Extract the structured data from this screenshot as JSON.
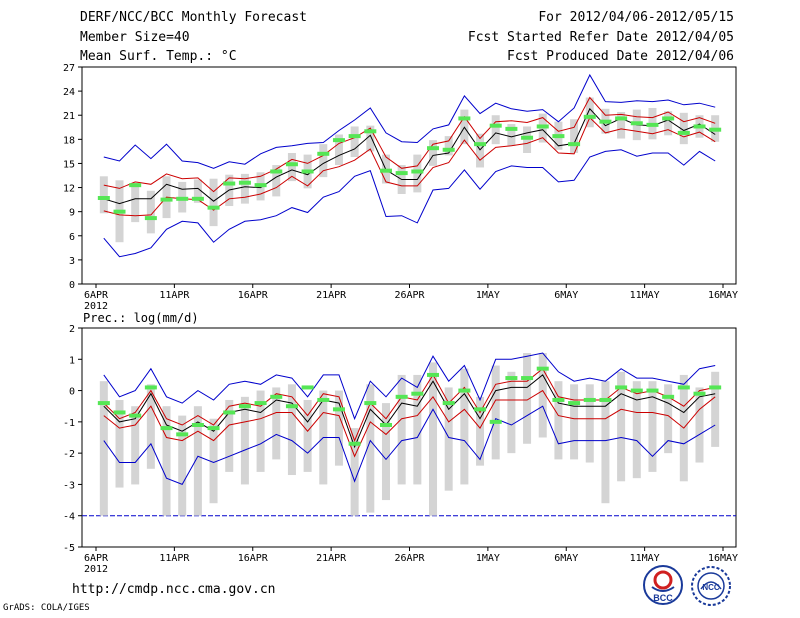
{
  "header": {
    "title": "DERF/NCC/BCC Monthly Forecast",
    "member_size": "Member Size=40",
    "variable": "Mean Surf. Temp.: °C",
    "period": "For 2012/04/06-2012/05/15",
    "started": "Fcst Started Refer Date 2012/04/05",
    "produced": "Fcst Produced Date 2012/04/06"
  },
  "footer": {
    "url": "http://cmdp.ncc.cma.gov.cn",
    "grads": "GrADS: COLA/IGES",
    "logo_left_text": "BCC",
    "logo_right_text": "NCC"
  },
  "colors": {
    "max_min": "#0000cc",
    "ensemble_bounds": "#cc0000",
    "ensemble_mean": "#000000",
    "box": "#d4d4d4",
    "median": "#55e655"
  },
  "chart_data": [
    {
      "type": "line",
      "title": "Mean Surf. Temp.: °C",
      "xlabel": "",
      "ylabel": "°C",
      "ylim": [
        0,
        27
      ],
      "yticks": [
        "0",
        "3",
        "6",
        "9",
        "12",
        "15",
        "18",
        "21",
        "24",
        "27"
      ],
      "x_days": 40,
      "xticks": [
        {
          "label": "6APR",
          "day": 0,
          "sub": "2012"
        },
        {
          "label": "11APR",
          "day": 5
        },
        {
          "label": "16APR",
          "day": 10
        },
        {
          "label": "21APR",
          "day": 15
        },
        {
          "label": "26APR",
          "day": 20
        },
        {
          "label": "1MAY",
          "day": 25
        },
        {
          "label": "6MAY",
          "day": 30
        },
        {
          "label": "11MAY",
          "day": 35
        },
        {
          "label": "16MAY",
          "day": 40
        }
      ],
      "series": [
        {
          "name": "max",
          "role": "max",
          "values": [
            15.8,
            15.3,
            17.3,
            15.6,
            17.4,
            15.3,
            15.1,
            14.4,
            15.2,
            14.9,
            16.2,
            17.0,
            17.2,
            17.5,
            17.6,
            19.1,
            20.4,
            21.9,
            18.8,
            17.7,
            17.6,
            19.3,
            19.8,
            23.4,
            21.2,
            22.5,
            21.8,
            21.5,
            21.7,
            20.2,
            21.9,
            26.0,
            22.7,
            22.6,
            22.8,
            22.7,
            22.9,
            22.3,
            22.5,
            22.0
          ]
        },
        {
          "name": "upper",
          "role": "bound",
          "values": [
            12.3,
            11.9,
            12.7,
            12.4,
            13.7,
            13.1,
            13.2,
            11.5,
            13.2,
            13.1,
            13.4,
            14.3,
            15.5,
            15.0,
            16.0,
            17.5,
            18.2,
            19.4,
            15.8,
            14.4,
            14.7,
            17.4,
            17.8,
            20.8,
            18.1,
            20.2,
            20.3,
            20.1,
            20.7,
            19.0,
            19.5,
            23.2,
            21.0,
            21.1,
            20.8,
            20.7,
            21.4,
            20.2,
            20.7,
            20.0
          ]
        },
        {
          "name": "ensemble mean",
          "role": "mean",
          "values": [
            10.6,
            10.0,
            10.6,
            10.6,
            12.4,
            11.8,
            11.9,
            10.3,
            11.7,
            12.1,
            12.0,
            13.3,
            14.2,
            13.6,
            15.0,
            16.0,
            16.8,
            18.5,
            14.2,
            13.0,
            13.0,
            16.0,
            16.3,
            19.5,
            16.7,
            18.8,
            18.3,
            18.8,
            19.2,
            17.2,
            17.5,
            21.8,
            19.7,
            20.6,
            19.8,
            19.7,
            20.4,
            19.1,
            19.9,
            18.6
          ]
        },
        {
          "name": "lower",
          "role": "bound",
          "values": [
            9.1,
            8.6,
            8.5,
            8.6,
            10.8,
            10.6,
            10.5,
            9.2,
            10.6,
            10.8,
            11.2,
            12.0,
            13.4,
            12.2,
            14.1,
            14.6,
            15.4,
            16.8,
            12.7,
            12.2,
            12.2,
            14.5,
            15.1,
            17.9,
            15.4,
            17.0,
            17.2,
            17.5,
            18.2,
            16.3,
            16.2,
            20.7,
            18.8,
            19.3,
            19.0,
            18.7,
            19.2,
            18.3,
            18.9,
            17.7
          ]
        },
        {
          "name": "min",
          "role": "min",
          "values": [
            5.7,
            3.4,
            3.8,
            4.5,
            6.8,
            7.8,
            7.6,
            5.2,
            6.8,
            7.8,
            8.0,
            8.5,
            9.5,
            8.9,
            10.8,
            11.5,
            13.4,
            14.1,
            8.4,
            8.5,
            7.6,
            11.7,
            11.9,
            14.2,
            11.8,
            14.0,
            14.7,
            14.5,
            14.5,
            12.7,
            12.9,
            15.8,
            16.5,
            16.7,
            15.9,
            16.3,
            16.3,
            14.8,
            16.5,
            15.3
          ]
        }
      ],
      "boxes": [
        {
          "low": 8.8,
          "high": 13.4,
          "median": 10.7
        },
        {
          "low": 5.2,
          "high": 12.9,
          "median": 9.0
        },
        {
          "low": 7.7,
          "high": 12.6,
          "median": 12.3
        },
        {
          "low": 6.3,
          "high": 11.6,
          "median": 8.2
        },
        {
          "low": 8.2,
          "high": 13.4,
          "median": 10.5
        },
        {
          "low": 8.9,
          "high": 12.7,
          "median": 10.6
        },
        {
          "low": 10.1,
          "high": 13.0,
          "median": 10.6
        },
        {
          "low": 7.2,
          "high": 13.1,
          "median": 9.5
        },
        {
          "low": 9.7,
          "high": 13.6,
          "median": 12.5
        },
        {
          "low": 10.0,
          "high": 13.7,
          "median": 12.6
        },
        {
          "low": 10.4,
          "high": 13.9,
          "median": 12.3
        },
        {
          "low": 10.9,
          "high": 14.8,
          "median": 14.0
        },
        {
          "low": 12.8,
          "high": 16.3,
          "median": 14.9
        },
        {
          "low": 11.9,
          "high": 16.1,
          "median": 14.0
        },
        {
          "low": 13.3,
          "high": 17.4,
          "median": 16.2
        },
        {
          "low": 14.8,
          "high": 18.6,
          "median": 17.9
        },
        {
          "low": 15.8,
          "high": 19.6,
          "median": 18.4
        },
        {
          "low": 16.5,
          "high": 19.7,
          "median": 19.0
        },
        {
          "low": 12.5,
          "high": 16.1,
          "median": 14.1
        },
        {
          "low": 11.2,
          "high": 14.8,
          "median": 13.8
        },
        {
          "low": 11.4,
          "high": 16.1,
          "median": 14.0
        },
        {
          "low": 14.7,
          "high": 17.9,
          "median": 16.9
        },
        {
          "low": 16.0,
          "high": 18.4,
          "median": 16.7
        },
        {
          "low": 17.4,
          "high": 21.7,
          "median": 20.6
        },
        {
          "low": 14.5,
          "high": 18.7,
          "median": 17.4
        },
        {
          "low": 17.4,
          "high": 21.0,
          "median": 19.7
        },
        {
          "low": 17.2,
          "high": 19.9,
          "median": 19.3
        },
        {
          "low": 16.3,
          "high": 19.6,
          "median": 18.2
        },
        {
          "low": 17.6,
          "high": 21.2,
          "median": 19.6
        },
        {
          "low": 16.7,
          "high": 20.2,
          "median": 18.4
        },
        {
          "low": 16.3,
          "high": 20.5,
          "median": 17.4
        },
        {
          "low": 19.5,
          "high": 23.2,
          "median": 20.8
        },
        {
          "low": 18.7,
          "high": 21.8,
          "median": 20.2
        },
        {
          "low": 18.1,
          "high": 21.4,
          "median": 20.6
        },
        {
          "low": 17.9,
          "high": 21.7,
          "median": 20.0
        },
        {
          "low": 18.0,
          "high": 21.9,
          "median": 19.8
        },
        {
          "low": 18.5,
          "high": 21.5,
          "median": 20.6
        },
        {
          "low": 17.4,
          "high": 21.3,
          "median": 18.8
        },
        {
          "low": 18.2,
          "high": 21.0,
          "median": 19.6
        },
        {
          "low": 17.7,
          "high": 21.0,
          "median": 19.2
        }
      ]
    },
    {
      "type": "line",
      "title": "Prec.: log(mm/d)",
      "xlabel": "",
      "ylabel": "log(mm/d)",
      "ylim": [
        -5,
        2
      ],
      "yticks": [
        "-5",
        "-4",
        "-3",
        "-2",
        "-1",
        "0",
        "1",
        "2"
      ],
      "x_days": 40,
      "xticks": [
        {
          "label": "6APR",
          "day": 0,
          "sub": "2012"
        },
        {
          "label": "11APR",
          "day": 5
        },
        {
          "label": "16APR",
          "day": 10
        },
        {
          "label": "21APR",
          "day": 15
        },
        {
          "label": "26APR",
          "day": 20
        },
        {
          "label": "1MAY",
          "day": 25
        },
        {
          "label": "6MAY",
          "day": 30
        },
        {
          "label": "11MAY",
          "day": 35
        },
        {
          "label": "16MAY",
          "day": 40
        }
      ],
      "series": [
        {
          "name": "max",
          "role": "max",
          "values": [
            0.5,
            -0.2,
            0.0,
            0.7,
            -0.2,
            -0.4,
            0.0,
            -0.3,
            0.2,
            0.3,
            0.2,
            0.5,
            0.4,
            -0.2,
            0.5,
            0.5,
            -0.9,
            0.3,
            -0.2,
            0.4,
            0.1,
            1.1,
            0.3,
            0.8,
            -0.3,
            1.0,
            1.0,
            1.1,
            1.2,
            0.6,
            0.3,
            0.4,
            0.3,
            0.7,
            0.4,
            0.4,
            0.3,
            0.2,
            0.7,
            0.8
          ]
        },
        {
          "name": "upper",
          "role": "bound",
          "values": [
            -0.4,
            -0.9,
            -0.7,
            0.0,
            -0.9,
            -1.1,
            -0.8,
            -1.1,
            -0.5,
            -0.4,
            -0.5,
            -0.1,
            -0.2,
            -0.8,
            -0.1,
            -0.2,
            -1.6,
            -0.4,
            -0.9,
            -0.2,
            -0.3,
            0.5,
            -0.4,
            0.1,
            -0.7,
            0.2,
            0.3,
            0.3,
            0.7,
            -0.2,
            -0.3,
            -0.3,
            -0.3,
            0.1,
            -0.1,
            0.0,
            -0.2,
            -0.5,
            0.0,
            0.1
          ]
        },
        {
          "name": "ensemble mean",
          "role": "mean",
          "values": [
            -0.5,
            -1.0,
            -0.9,
            -0.1,
            -1.1,
            -1.3,
            -1.0,
            -1.3,
            -0.7,
            -0.6,
            -0.7,
            -0.3,
            -0.4,
            -1.0,
            -0.3,
            -0.4,
            -1.8,
            -0.6,
            -1.1,
            -0.4,
            -0.5,
            0.3,
            -0.6,
            -0.1,
            -0.9,
            0.0,
            0.1,
            0.1,
            0.5,
            -0.4,
            -0.5,
            -0.5,
            -0.5,
            -0.1,
            -0.3,
            -0.2,
            -0.4,
            -0.7,
            -0.2,
            -0.1
          ]
        },
        {
          "name": "lower",
          "role": "bound",
          "values": [
            -0.8,
            -1.2,
            -1.1,
            -0.5,
            -1.5,
            -1.6,
            -1.3,
            -1.6,
            -1.1,
            -1.0,
            -0.9,
            -0.7,
            -0.7,
            -1.3,
            -0.7,
            -0.8,
            -2.1,
            -1.0,
            -1.4,
            -0.9,
            -0.8,
            -0.2,
            -1.0,
            -0.6,
            -1.2,
            -0.3,
            -0.3,
            -0.3,
            0.0,
            -0.8,
            -0.9,
            -0.9,
            -0.9,
            -0.6,
            -0.7,
            -0.7,
            -0.8,
            -1.2,
            -0.6,
            -0.2
          ]
        },
        {
          "name": "min",
          "role": "min",
          "values": [
            -1.6,
            -2.3,
            -2.3,
            -1.7,
            -2.8,
            -3.0,
            -2.1,
            -2.3,
            -2.1,
            -1.9,
            -1.7,
            -1.4,
            -1.6,
            -2.0,
            -1.5,
            -1.5,
            -2.9,
            -1.6,
            -2.2,
            -1.6,
            -1.5,
            -0.6,
            -1.5,
            -1.6,
            -2.2,
            -0.9,
            -1.1,
            -0.8,
            -0.5,
            -1.7,
            -1.6,
            -1.6,
            -1.6,
            -1.5,
            -1.6,
            -2.1,
            -1.6,
            -1.7,
            -1.4,
            -1.1
          ]
        }
      ],
      "baseline": -4.0,
      "boxes": [
        {
          "low": -4.0,
          "high": 0.3,
          "median": -0.4
        },
        {
          "low": -3.1,
          "high": -0.3,
          "median": -0.7
        },
        {
          "low": -3.0,
          "high": -0.5,
          "median": -0.8
        },
        {
          "low": -2.5,
          "high": 0.2,
          "median": 0.1
        },
        {
          "low": -4.0,
          "high": -0.5,
          "median": -1.2
        },
        {
          "low": -4.0,
          "high": -0.8,
          "median": -1.4
        },
        {
          "low": -4.0,
          "high": -0.5,
          "median": -1.1
        },
        {
          "low": -3.6,
          "high": -0.9,
          "median": -1.2
        },
        {
          "low": -2.6,
          "high": -0.3,
          "median": -0.7
        },
        {
          "low": -3.0,
          "high": -0.2,
          "median": -0.5
        },
        {
          "low": -2.6,
          "high": 0.0,
          "median": -0.4
        },
        {
          "low": -2.2,
          "high": 0.1,
          "median": -0.2
        },
        {
          "low": -2.7,
          "high": 0.2,
          "median": -0.5
        },
        {
          "low": -2.6,
          "high": -0.3,
          "median": 0.1
        },
        {
          "low": -3.0,
          "high": 0.0,
          "median": -0.3
        },
        {
          "low": -2.4,
          "high": 0.0,
          "median": -0.6
        },
        {
          "low": -4.0,
          "high": -1.2,
          "median": -1.7
        },
        {
          "low": -3.9,
          "high": 0.2,
          "median": -0.4
        },
        {
          "low": -3.5,
          "high": -0.4,
          "median": -1.1
        },
        {
          "low": -3.0,
          "high": 0.5,
          "median": -0.2
        },
        {
          "low": -3.0,
          "high": 0.5,
          "median": -0.1
        },
        {
          "low": -4.0,
          "high": 0.9,
          "median": 0.5
        },
        {
          "low": -3.2,
          "high": 0.1,
          "median": -0.4
        },
        {
          "low": -3.0,
          "high": 0.7,
          "median": 0.0
        },
        {
          "low": -2.4,
          "high": -0.2,
          "median": -0.6
        },
        {
          "low": -2.2,
          "high": 0.8,
          "median": -1.0
        },
        {
          "low": -2.0,
          "high": 0.6,
          "median": 0.4
        },
        {
          "low": -1.7,
          "high": 1.2,
          "median": 0.4
        },
        {
          "low": -1.5,
          "high": 1.2,
          "median": 0.7
        },
        {
          "low": -2.2,
          "high": 0.3,
          "median": -0.3
        },
        {
          "low": -2.2,
          "high": 0.2,
          "median": -0.4
        },
        {
          "low": -2.3,
          "high": 0.2,
          "median": -0.3
        },
        {
          "low": -3.6,
          "high": 0.3,
          "median": -0.3
        },
        {
          "low": -2.9,
          "high": 0.6,
          "median": 0.1
        },
        {
          "low": -2.8,
          "high": 0.3,
          "median": 0.0
        },
        {
          "low": -2.6,
          "high": 0.3,
          "median": 0.0
        },
        {
          "low": -2.0,
          "high": 0.2,
          "median": -0.2
        },
        {
          "low": -2.9,
          "high": 0.5,
          "median": 0.1
        },
        {
          "low": -2.3,
          "high": 0.1,
          "median": -0.1
        },
        {
          "low": -1.8,
          "high": 0.6,
          "median": 0.1
        }
      ]
    }
  ]
}
